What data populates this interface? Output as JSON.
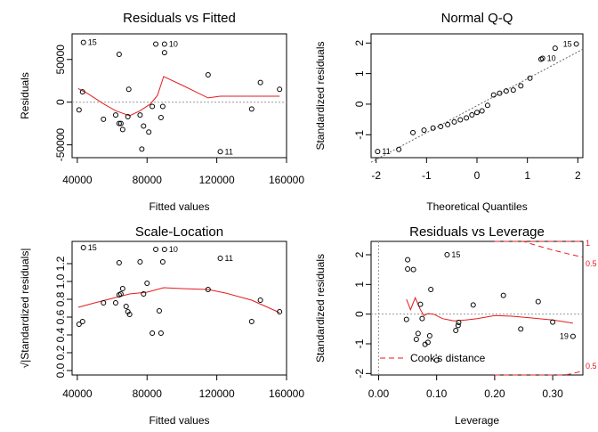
{
  "chart_data": [
    {
      "type": "scatter",
      "title": "Residuals vs Fitted",
      "xlabel": "Fitted values",
      "ylabel": "Residuals",
      "xlim": [
        37000,
        160000
      ],
      "ylim": [
        -65000,
        80000
      ],
      "xticks": [
        40000,
        80000,
        120000,
        160000
      ],
      "xtick_labels": [
        "40000",
        "80000",
        "120000",
        "160000"
      ],
      "yticks": [
        -50000,
        0,
        50000
      ],
      "ytick_labels": [
        "-50000",
        "0",
        "50000"
      ],
      "reference_line": 0,
      "points": [
        {
          "x": 41000,
          "y": -9000
        },
        {
          "x": 43000,
          "y": 12000
        },
        {
          "x": 43500,
          "y": 70000,
          "label": "15"
        },
        {
          "x": 55000,
          "y": -20000
        },
        {
          "x": 62000,
          "y": -15000
        },
        {
          "x": 64000,
          "y": -25000
        },
        {
          "x": 65000,
          "y": -25000
        },
        {
          "x": 64000,
          "y": 56000
        },
        {
          "x": 66000,
          "y": -32000
        },
        {
          "x": 69000,
          "y": -17000
        },
        {
          "x": 69500,
          "y": 15000
        },
        {
          "x": 76000,
          "y": -15000
        },
        {
          "x": 78000,
          "y": -28000
        },
        {
          "x": 77000,
          "y": -55000
        },
        {
          "x": 81000,
          "y": -35000
        },
        {
          "x": 83000,
          "y": -5000
        },
        {
          "x": 85000,
          "y": 68000
        },
        {
          "x": 88000,
          "y": -18000
        },
        {
          "x": 89000,
          "y": -5000
        },
        {
          "x": 90000,
          "y": 68000,
          "label": "10"
        },
        {
          "x": 90000,
          "y": 58000
        },
        {
          "x": 115000,
          "y": 32000
        },
        {
          "x": 122000,
          "y": -58000,
          "label": "11"
        },
        {
          "x": 140000,
          "y": -8000
        },
        {
          "x": 145000,
          "y": 23000
        },
        {
          "x": 156000,
          "y": 15000
        }
      ],
      "smooth": [
        [
          40500,
          16000
        ],
        [
          46000,
          10000
        ],
        [
          55000,
          -2000
        ],
        [
          62000,
          -10000
        ],
        [
          70000,
          -16000
        ],
        [
          76000,
          -10000
        ],
        [
          82000,
          -2000
        ],
        [
          86000,
          8000
        ],
        [
          89500,
          30000
        ],
        [
          100000,
          20000
        ],
        [
          108000,
          12000
        ],
        [
          115000,
          5000
        ],
        [
          122000,
          7000
        ],
        [
          140000,
          7000
        ],
        [
          156000,
          7000
        ]
      ]
    },
    {
      "type": "scatter",
      "title": "Normal Q-Q",
      "xlabel": "Theoretical Quantiles",
      "ylabel": "Standardized residuals",
      "xlim": [
        -2.1,
        2.1
      ],
      "ylim": [
        -1.75,
        2.3
      ],
      "xticks": [
        -2,
        -1,
        0,
        1,
        2
      ],
      "xtick_labels": [
        "-2",
        "-1",
        "0",
        "1",
        "2"
      ],
      "yticks": [
        -1,
        0,
        1,
        2
      ],
      "ytick_labels": [
        "-1",
        "0",
        "1",
        "2"
      ],
      "qq_line": [
        [
          -2.1,
          -1.9
        ],
        [
          2.1,
          1.8
        ]
      ],
      "points": [
        {
          "x": -1.97,
          "y": -1.55,
          "label": "11"
        },
        {
          "x": -1.55,
          "y": -1.48
        },
        {
          "x": -1.27,
          "y": -0.93
        },
        {
          "x": -1.05,
          "y": -0.85
        },
        {
          "x": -0.87,
          "y": -0.78
        },
        {
          "x": -0.72,
          "y": -0.73
        },
        {
          "x": -0.58,
          "y": -0.67
        },
        {
          "x": -0.45,
          "y": -0.58
        },
        {
          "x": -0.33,
          "y": -0.51
        },
        {
          "x": -0.21,
          "y": -0.45
        },
        {
          "x": -0.1,
          "y": -0.35
        },
        {
          "x": 0.0,
          "y": -0.27
        },
        {
          "x": 0.1,
          "y": -0.22
        },
        {
          "x": 0.21,
          "y": -0.04
        },
        {
          "x": 0.33,
          "y": 0.3
        },
        {
          "x": 0.45,
          "y": 0.36
        },
        {
          "x": 0.58,
          "y": 0.43
        },
        {
          "x": 0.72,
          "y": 0.46
        },
        {
          "x": 0.87,
          "y": 0.6
        },
        {
          "x": 1.05,
          "y": 0.85
        },
        {
          "x": 1.27,
          "y": 1.47
        },
        {
          "x": 1.3,
          "y": 1.5,
          "label": "10"
        },
        {
          "x": 1.55,
          "y": 1.83
        },
        {
          "x": 1.97,
          "y": 1.97,
          "label": "15"
        }
      ]
    },
    {
      "type": "scatter",
      "title": "Scale-Location",
      "xlabel": "Fitted values",
      "ylabel": "√|Standardized residuals|",
      "xlim": [
        37000,
        160000
      ],
      "ylim": [
        -0.05,
        1.45
      ],
      "xticks": [
        40000,
        80000,
        120000,
        160000
      ],
      "xtick_labels": [
        "40000",
        "80000",
        "120000",
        "160000"
      ],
      "yticks": [
        0.0,
        0.2,
        0.4,
        0.6,
        0.8,
        1.0,
        1.2
      ],
      "ytick_labels": [
        "0.0",
        "0.2",
        "0.4",
        "0.6",
        "0.8",
        "1.0",
        "1.2"
      ],
      "points": [
        {
          "x": 41000,
          "y": 0.52
        },
        {
          "x": 43000,
          "y": 0.55
        },
        {
          "x": 43500,
          "y": 1.38,
          "label": "15"
        },
        {
          "x": 55000,
          "y": 0.76
        },
        {
          "x": 62000,
          "y": 0.76
        },
        {
          "x": 64000,
          "y": 1.21
        },
        {
          "x": 64000,
          "y": 0.85
        },
        {
          "x": 65000,
          "y": 0.86
        },
        {
          "x": 66000,
          "y": 0.92
        },
        {
          "x": 68000,
          "y": 0.72
        },
        {
          "x": 69000,
          "y": 0.66
        },
        {
          "x": 70000,
          "y": 0.63
        },
        {
          "x": 76000,
          "y": 1.22
        },
        {
          "x": 78000,
          "y": 0.86
        },
        {
          "x": 80000,
          "y": 0.98
        },
        {
          "x": 83000,
          "y": 0.42
        },
        {
          "x": 85000,
          "y": 1.36
        },
        {
          "x": 87000,
          "y": 0.67
        },
        {
          "x": 88000,
          "y": 0.42
        },
        {
          "x": 89000,
          "y": 1.22
        },
        {
          "x": 90000,
          "y": 1.36,
          "label": "10"
        },
        {
          "x": 115000,
          "y": 0.91
        },
        {
          "x": 122000,
          "y": 1.26,
          "label": "11"
        },
        {
          "x": 140000,
          "y": 0.55
        },
        {
          "x": 145000,
          "y": 0.79
        },
        {
          "x": 156000,
          "y": 0.66
        }
      ],
      "smooth": [
        [
          40500,
          0.71
        ],
        [
          50000,
          0.76
        ],
        [
          60000,
          0.81
        ],
        [
          70000,
          0.86
        ],
        [
          80000,
          0.88
        ],
        [
          89500,
          0.93
        ],
        [
          100000,
          0.92
        ],
        [
          115000,
          0.91
        ],
        [
          125000,
          0.87
        ],
        [
          140000,
          0.79
        ],
        [
          156000,
          0.65
        ]
      ]
    },
    {
      "type": "scatter",
      "title": "Residuals vs Leverage",
      "xlabel": "Leverage",
      "ylabel": "Standardized residuals",
      "xlim": [
        -0.013,
        0.352
      ],
      "ylim": [
        -2.05,
        2.45
      ],
      "xticks": [
        0.0,
        0.1,
        0.2,
        0.3
      ],
      "xtick_labels": [
        "0.00",
        "0.10",
        "0.20",
        "0.30"
      ],
      "yticks": [
        -2,
        -1,
        0,
        1,
        2
      ],
      "ytick_labels": [
        "-2",
        "-1",
        "0",
        "1",
        "2"
      ],
      "legend": {
        "label": "Cook's distance",
        "position": "bottom-left"
      },
      "cooks_contour_labels": [
        "1",
        "0.5",
        "0.5"
      ],
      "points": [
        {
          "x": 0.05,
          "y": 1.83
        },
        {
          "x": 0.05,
          "y": 1.52
        },
        {
          "x": 0.048,
          "y": -0.18
        },
        {
          "x": 0.06,
          "y": 1.5
        },
        {
          "x": 0.065,
          "y": -0.85
        },
        {
          "x": 0.068,
          "y": -0.65
        },
        {
          "x": 0.072,
          "y": 0.33
        },
        {
          "x": 0.075,
          "y": -0.15
        },
        {
          "x": 0.08,
          "y": -1.02
        },
        {
          "x": 0.085,
          "y": -0.95
        },
        {
          "x": 0.088,
          "y": -0.73
        },
        {
          "x": 0.09,
          "y": 0.83
        },
        {
          "x": 0.1,
          "y": -1.55
        },
        {
          "x": 0.118,
          "y": 2.0,
          "label": "15"
        },
        {
          "x": 0.133,
          "y": -0.55
        },
        {
          "x": 0.137,
          "y": -0.38
        },
        {
          "x": 0.138,
          "y": -0.28
        },
        {
          "x": 0.163,
          "y": 0.31
        },
        {
          "x": 0.215,
          "y": 0.63
        },
        {
          "x": 0.245,
          "y": -0.5
        },
        {
          "x": 0.275,
          "y": 0.42
        },
        {
          "x": 0.3,
          "y": -0.27
        },
        {
          "x": 0.335,
          "y": -0.75,
          "label": "19"
        }
      ],
      "smooth": [
        [
          0.048,
          0.5
        ],
        [
          0.055,
          0.15
        ],
        [
          0.063,
          0.55
        ],
        [
          0.072,
          0.15
        ],
        [
          0.078,
          -0.05
        ],
        [
          0.085,
          0.02
        ],
        [
          0.095,
          0.0
        ],
        [
          0.11,
          -0.15
        ],
        [
          0.13,
          -0.23
        ],
        [
          0.15,
          -0.2
        ],
        [
          0.17,
          -0.15
        ],
        [
          0.2,
          -0.05
        ],
        [
          0.23,
          -0.07
        ],
        [
          0.26,
          -0.12
        ],
        [
          0.3,
          -0.2
        ],
        [
          0.335,
          -0.3
        ]
      ]
    }
  ]
}
